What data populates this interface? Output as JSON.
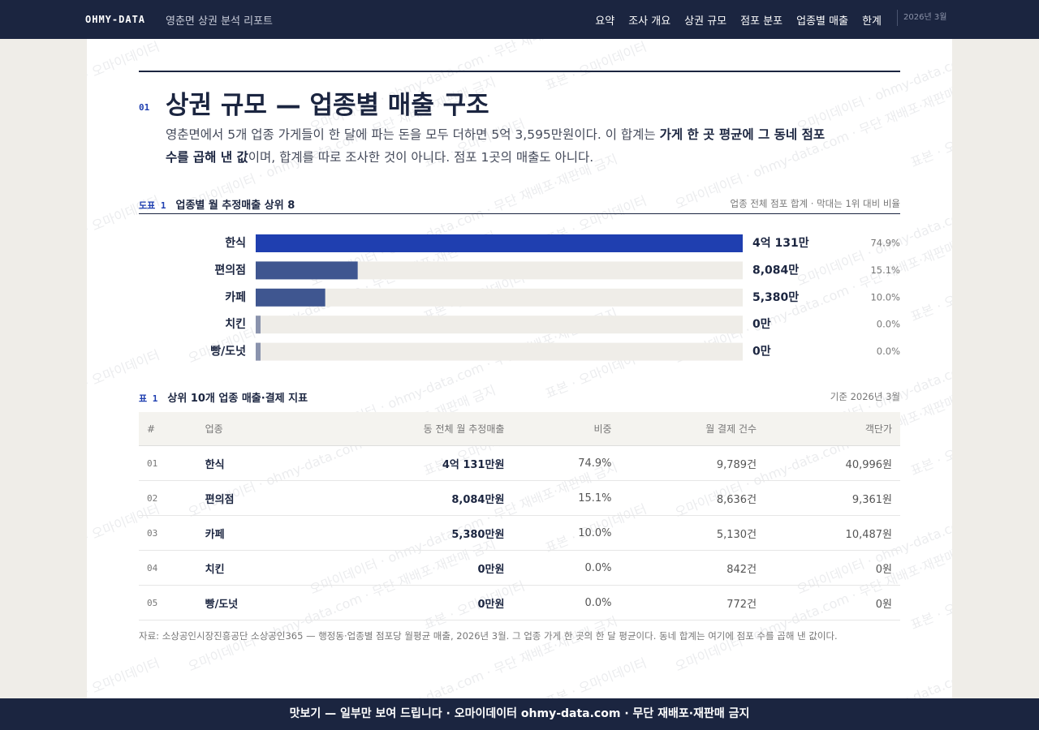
{
  "nav": {
    "brand": "OHMY-DATA",
    "subtitle": "영춘면 상권 분석 리포트",
    "links": [
      "요약",
      "조사 개요",
      "상권 규모",
      "점포 분포",
      "업종별 매출",
      "한계"
    ],
    "date": "2026년 3월"
  },
  "section": {
    "number": "01",
    "title": "상권 규모 — 업종별 매출 구조",
    "paragraph": [
      "영춘면에서 5개 업종 가게들이 한 달에 파는 돈을 모두 더하면 5억 3,595만원이다. 이 합계는 ",
      "가게 한 곳 평균에 그 동네 점포 수를 곱해 낸 값",
      "이며, 합계를 따로 조사한 것이 아니다. 점포 1곳의 매출도 아니다."
    ]
  },
  "chart_data": {
    "type": "bar",
    "label": "도표 1",
    "title": "업종별 월 추정매출 상위 8",
    "note": "업종 전체 점포 합계 · 막대는 1위 대비 비율",
    "categories": [
      "한식",
      "편의점",
      "카페",
      "치킨",
      "빵/도넛"
    ],
    "values": [
      40131,
      8084,
      5380,
      0,
      0
    ],
    "value_labels": [
      "4억 131만",
      "8,084만",
      "5,380만",
      "0만",
      "0만"
    ],
    "share_values": [
      74.9,
      15.1,
      10.0,
      0.0,
      0.0
    ],
    "share_labels": [
      "74.9%",
      "15.1%",
      "10.0%",
      "0.0%",
      "0.0%"
    ],
    "colors": [
      "#1f3fb0",
      "#3f5690",
      "#3f5690",
      "#8a93ad",
      "#8a93ad"
    ],
    "xlim": [
      0,
      40131
    ]
  },
  "table": {
    "label": "표 1",
    "title": "상위 10개 업종 매출·결제 지표",
    "note": "기준 2026년 3월",
    "columns": [
      "#",
      "업종",
      "동 전체 월 추정매출",
      "비중",
      "월 결제 건수",
      "객단가"
    ],
    "rows": [
      [
        "01",
        "한식",
        "4억 131만원",
        "74.9%",
        "9,789건",
        "40,996원"
      ],
      [
        "02",
        "편의점",
        "8,084만원",
        "15.1%",
        "8,636건",
        "9,361원"
      ],
      [
        "03",
        "카페",
        "5,380만원",
        "10.0%",
        "5,130건",
        "10,487원"
      ],
      [
        "04",
        "치킨",
        "0만원",
        "0.0%",
        "842건",
        "0원"
      ],
      [
        "05",
        "빵/도넛",
        "0만원",
        "0.0%",
        "772건",
        "0원"
      ]
    ],
    "source": "자료: 소상공인시장진흥공단 소상공인365 — 행정동·업종별 점포당 월평균 매출, 2026년 3월. 그 업종 가게 한 곳의 한 달 평균이다. 동네 합계는 여기에 점포 수를 곱해 낸 값이다."
  },
  "watermark": [
    "표본 · 오마이데이터",
    "오마이데이터 · ohmy-data.com · 무단 재배포·재판매 금지"
  ],
  "footer": "맛보기 — 일부만 보여 드립니다 · 오마이데이터 ohmy-data.com · 무단 재배포·재판매 금지"
}
